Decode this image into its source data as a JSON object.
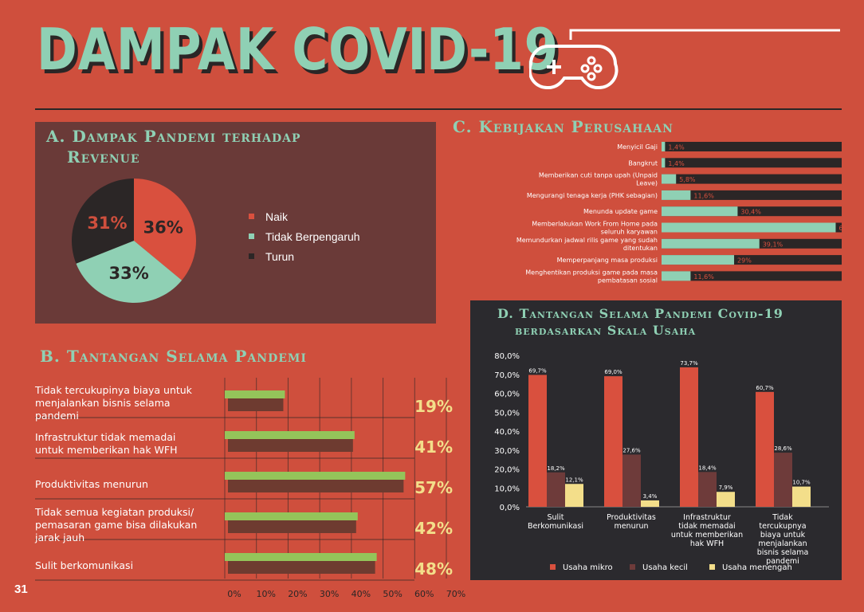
{
  "page": {
    "title": "DAMPAK COVID-19",
    "page_number": "31",
    "icon": "gamepad-icon"
  },
  "colors": {
    "background": "#cf4f3d",
    "dark": "#2b2626",
    "mint": "#8fd0b4",
    "panel_brown": "#6a3a38",
    "red": "#d9503e",
    "maroon": "#6e3b3a",
    "yellow": "#f3de8a",
    "grass": "#94c45a",
    "dirt": "#6e3b30",
    "pct_yellow": "#f3de8a"
  },
  "chart_data": [
    {
      "id": "A",
      "type": "pie",
      "title": "A. Dampak Pandemi terhadap Revenue",
      "labels": [
        "Naik",
        "Tidak Berpengaruh",
        "Turun"
      ],
      "values": [
        36,
        33,
        31
      ],
      "value_labels": [
        "36%",
        "33%",
        "31%"
      ],
      "colors": [
        "#d9503e",
        "#8fd0b4",
        "#2b2626"
      ],
      "legend": "right"
    },
    {
      "id": "B",
      "type": "bar",
      "orientation": "horizontal",
      "title": "B. Tantangan Selama Pandemi",
      "categories": [
        "Tidak tercukupinya biaya untuk menjalankan bisnis selama pandemi",
        "Infrastruktur tidak memadai untuk memberikan hak WFH",
        "Produktivitas menurun",
        "Tidak semua kegiatan produksi/ pemasaran game bisa dilakukan jarak jauh",
        "Sulit berkomunikasi"
      ],
      "values": [
        19,
        41,
        57,
        42,
        48
      ],
      "value_labels": [
        "19%",
        "41%",
        "57%",
        "42%",
        "48%"
      ],
      "xlim": [
        0,
        70
      ],
      "xticks": [
        "0%",
        "10%",
        "20%",
        "30%",
        "40%",
        "50%",
        "60%",
        "70%"
      ],
      "grid": true
    },
    {
      "id": "C",
      "type": "bar",
      "orientation": "horizontal",
      "title": "C. Kebijakan Perusahaan",
      "categories": [
        "Menyicil Gaji",
        "Bangkrut",
        "Memberikan cuti tanpa upah (Unpaid Leave)",
        "Mengurangi tenaga kerja (PHK sebagian)",
        "Menunda update game",
        "Memberlakukan Work From Home pada seluruh karyawan",
        "Memundurkan jadwal rilis game yang sudah ditentukan",
        "Memperpanjang masa produksi",
        "Menghentikan produksi game pada masa pembatasan sosial"
      ],
      "values": [
        1.4,
        1.4,
        5.8,
        11.6,
        30.4,
        69.6,
        39.1,
        29,
        11.6
      ],
      "value_labels": [
        "1,4%",
        "1,4%",
        "5,8%",
        "11,6%",
        "30,4%",
        "69,6%",
        "39,1%",
        "29%",
        "11,6%"
      ],
      "xlim": [
        0,
        72
      ]
    },
    {
      "id": "D",
      "type": "bar",
      "title": "D. Tantangan Selama Pandemi Covid-19 berdasarkan Skala Usaha",
      "categories": [
        "Sulit Berkomunikasi",
        "Produktivitas menurun",
        "Infrastruktur tidak memadai untuk memberikan hak WFH",
        "Tidak tercukupnya biaya untuk menjalankan bisnis selama pandemi"
      ],
      "series": [
        {
          "name": "Usaha mikro",
          "color": "#d9503e",
          "values": [
            69.7,
            69.0,
            73.7,
            60.7
          ],
          "labels": [
            "69,7%",
            "69,0%",
            "73,7%",
            "60,7%"
          ]
        },
        {
          "name": "Usaha kecil",
          "color": "#6e3b3a",
          "values": [
            18.2,
            27.6,
            18.4,
            28.6
          ],
          "labels": [
            "18,2%",
            "27,6%",
            "18,4%",
            "28,6%"
          ]
        },
        {
          "name": "Usaha menengah",
          "color": "#f3de8a",
          "values": [
            12.1,
            3.4,
            7.9,
            10.7
          ],
          "labels": [
            "12,1%",
            "3,4%",
            "7,9%",
            "10,7%"
          ]
        }
      ],
      "ylim": [
        0,
        80
      ],
      "yticks": [
        "0,0%",
        "10,0%",
        "20,0%",
        "30,0%",
        "40,0%",
        "50,0%",
        "60,0%",
        "70,0%",
        "80,0%"
      ],
      "legend": "bottom"
    }
  ]
}
